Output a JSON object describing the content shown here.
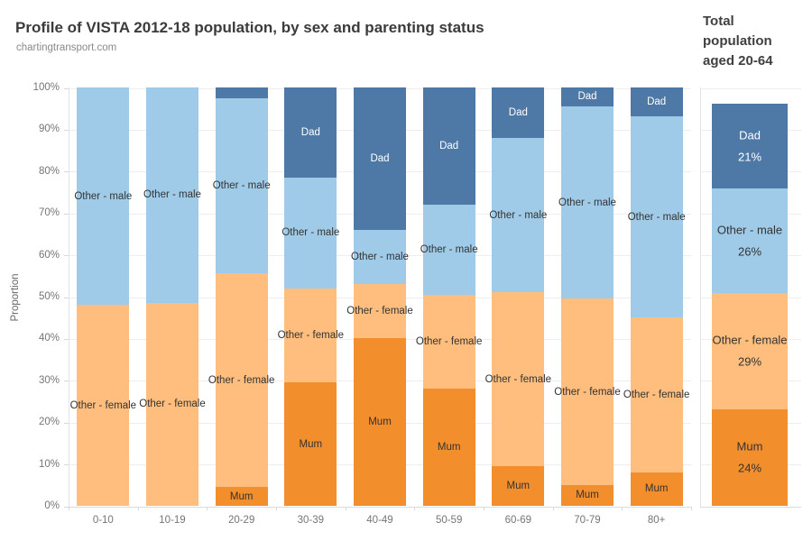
{
  "accent_colors": {
    "mum_orange": "#f28e2b",
    "other_female_orange": "#ffbe7d",
    "other_male_blue": "#a0cbe8",
    "dad_blue": "#4e79a7"
  },
  "chart_data": [
    {
      "type": "bar",
      "subtype": "stacked_bar_100pct",
      "title": "Profile of VISTA 2012-18 population, by sex and parenting status",
      "subtitle": "chartingtransport.com",
      "xlabel": "",
      "ylabel": "Proportion",
      "ylim": [
        0,
        100
      ],
      "grid": true,
      "legend_position": "none (series labelled inside bar segments)",
      "y_ticks": [
        "0%",
        "10%",
        "20%",
        "30%",
        "40%",
        "50%",
        "60%",
        "70%",
        "80%",
        "90%",
        "100%"
      ],
      "categories": [
        "0-10",
        "10-19",
        "20-29",
        "30-39",
        "40-49",
        "50-59",
        "60-69",
        "70-79",
        "80+"
      ],
      "stack_order": "bottom to top",
      "label_min_pct": 4,
      "series": [
        {
          "name": "Mum",
          "color": "#f28e2b",
          "text_color": "#333333",
          "values": [
            0,
            0,
            4.5,
            29.5,
            40,
            28,
            9.5,
            5,
            8
          ]
        },
        {
          "name": "Other - female",
          "color": "#ffbe7d",
          "text_color": "#333333",
          "values": [
            48,
            48.5,
            51,
            22.5,
            13,
            22.5,
            41.5,
            44.5,
            37
          ]
        },
        {
          "name": "Other - male",
          "color": "#a0cbe8",
          "text_color": "#333333",
          "values": [
            52,
            51.5,
            42,
            26.5,
            13,
            21.5,
            37,
            46,
            48
          ]
        },
        {
          "name": "Dad",
          "color": "#4e79a7",
          "text_color": "#ffffff",
          "values": [
            0,
            0,
            2.5,
            21.5,
            34,
            28,
            12,
            4.5,
            7
          ]
        }
      ]
    },
    {
      "type": "bar",
      "subtype": "stacked_bar_single",
      "title": "Total population aged 20-64",
      "categories": [
        "Total population aged 20-64"
      ],
      "stack_order": "bottom to top",
      "series": [
        {
          "name": "Mum",
          "pct_label": "24%",
          "color": "#f28e2b",
          "text_color": "#333333",
          "values": [
            24
          ]
        },
        {
          "name": "Other - female",
          "pct_label": "29%",
          "color": "#ffbe7d",
          "text_color": "#333333",
          "values": [
            29
          ]
        },
        {
          "name": "Other - male",
          "pct_label": "26%",
          "color": "#a0cbe8",
          "text_color": "#333333",
          "values": [
            26
          ]
        },
        {
          "name": "Dad",
          "pct_label": "21%",
          "color": "#4e79a7",
          "text_color": "#ffffff",
          "values": [
            21
          ]
        }
      ]
    }
  ]
}
